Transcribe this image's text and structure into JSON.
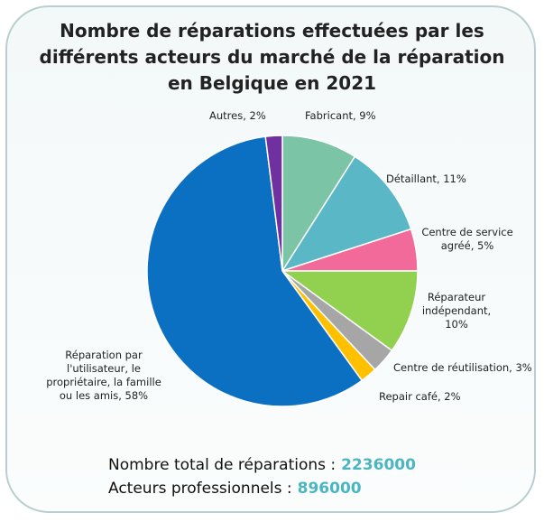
{
  "chart_data": {
    "type": "pie",
    "title": "Nombre de réparations effectuées par les différents acteurs du marché de la réparation en Belgique en 2021",
    "values": [
      9,
      11,
      5,
      10,
      3,
      2,
      58,
      2
    ],
    "value_labels": [
      "Fabricant, 9%",
      "Détaillant, 11%",
      "Centre de service agréé, 5%",
      "Réparateur indépendant, 10%",
      "Centre de réutilisation, 3%",
      "Repair café, 2%",
      "Réparation par l'utilisateur, le propriétaire, la famille ou les amis, 58%",
      "Autres, 2%"
    ],
    "colors": [
      "#7cc4a6",
      "#5ab7c6",
      "#f26a9a",
      "#92d050",
      "#a6a6a6",
      "#ffc000",
      "#0b70c2",
      "#7030a0"
    ],
    "footer": [
      {
        "label": "Nombre total de réparations :",
        "value": 2236000
      },
      {
        "label": "Acteurs professionnels :",
        "value": 896000
      }
    ]
  }
}
